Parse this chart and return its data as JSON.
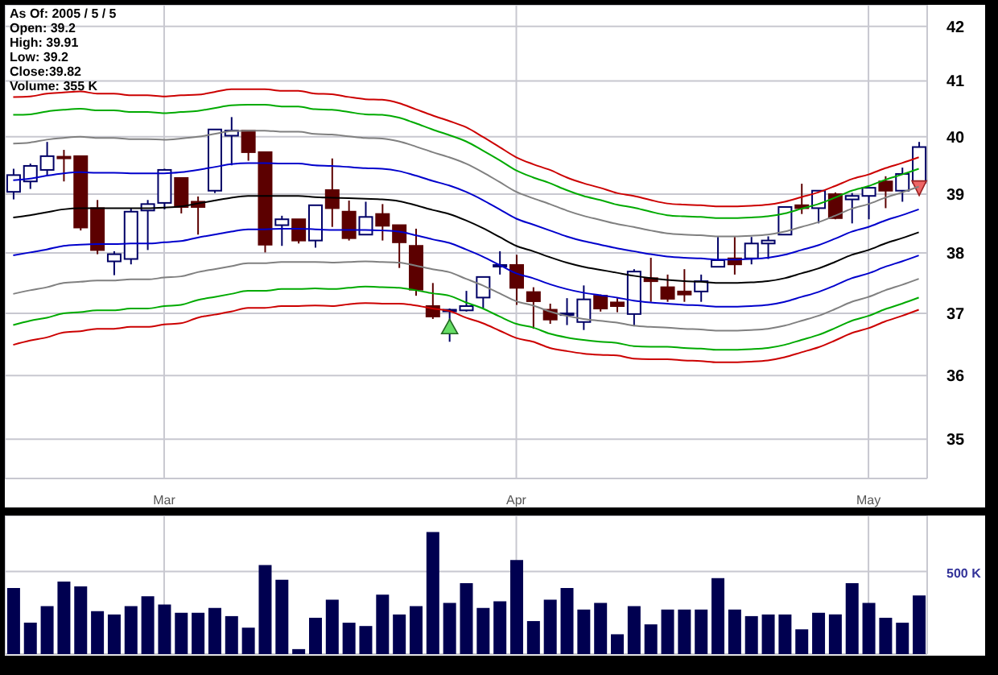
{
  "chart_data": [
    {
      "type": "candlestick",
      "categories": [
        null,
        null,
        null,
        null,
        null,
        null,
        null,
        null,
        null,
        "Mar",
        null,
        null,
        null,
        null,
        null,
        null,
        null,
        null,
        null,
        null,
        null,
        null,
        null,
        null,
        null,
        null,
        null,
        null,
        null,
        null,
        "Apr",
        null,
        null,
        null,
        null,
        null,
        null,
        null,
        null,
        null,
        null,
        null,
        null,
        null,
        null,
        null,
        null,
        null,
        null,
        null,
        null,
        "May",
        null,
        null,
        null
      ],
      "ohlc": [
        [
          39.04,
          39.44,
          38.91,
          39.33
        ],
        [
          39.22,
          39.53,
          39.09,
          39.49
        ],
        [
          39.42,
          39.91,
          39.31,
          39.66
        ],
        [
          39.65,
          39.77,
          39.22,
          39.64
        ],
        [
          39.66,
          39.66,
          38.38,
          38.43
        ],
        [
          38.76,
          38.9,
          37.98,
          38.05
        ],
        [
          37.86,
          38.03,
          37.63,
          37.98
        ],
        [
          37.9,
          38.76,
          37.81,
          38.7
        ],
        [
          38.72,
          38.9,
          38.05,
          38.83
        ],
        [
          38.85,
          39.44,
          38.74,
          39.42
        ],
        [
          39.28,
          39.28,
          38.67,
          38.78
        ],
        [
          38.87,
          38.96,
          38.31,
          38.78
        ],
        [
          39.06,
          40.13,
          39.02,
          40.13
        ],
        [
          40.02,
          40.35,
          39.5,
          40.11
        ],
        [
          40.11,
          40.11,
          39.58,
          39.73
        ],
        [
          39.73,
          39.73,
          38.01,
          38.14
        ],
        [
          38.47,
          38.63,
          38.12,
          38.57
        ],
        [
          38.57,
          38.57,
          38.16,
          38.21
        ],
        [
          38.21,
          38.81,
          38.09,
          38.81
        ],
        [
          39.07,
          39.62,
          38.44,
          38.76
        ],
        [
          38.7,
          38.89,
          38.21,
          38.25
        ],
        [
          38.31,
          38.87,
          38.31,
          38.61
        ],
        [
          38.66,
          38.83,
          38.21,
          38.46
        ],
        [
          38.47,
          38.47,
          37.75,
          38.18
        ],
        [
          38.12,
          38.41,
          37.29,
          37.39
        ],
        [
          37.12,
          37.5,
          36.91,
          36.95
        ],
        [
          37.05,
          37.08,
          36.54,
          37.06
        ],
        [
          37.05,
          37.37,
          37.03,
          37.12
        ],
        [
          37.26,
          37.6,
          37.08,
          37.6
        ],
        [
          37.79,
          38.03,
          37.64,
          37.8
        ],
        [
          37.8,
          37.97,
          37.14,
          37.42
        ],
        [
          37.35,
          37.43,
          36.75,
          37.2
        ],
        [
          37.06,
          37.16,
          36.83,
          36.9
        ],
        [
          36.98,
          37.25,
          36.81,
          37.0
        ],
        [
          36.86,
          37.46,
          36.73,
          37.23
        ],
        [
          37.29,
          37.31,
          37.03,
          37.08
        ],
        [
          37.18,
          37.25,
          37.02,
          37.12
        ],
        [
          36.99,
          37.73,
          36.79,
          37.69
        ],
        [
          37.58,
          37.92,
          37.19,
          37.53
        ],
        [
          37.43,
          37.64,
          37.19,
          37.24
        ],
        [
          37.36,
          37.73,
          37.19,
          37.31
        ],
        [
          37.36,
          37.64,
          37.19,
          37.53
        ],
        [
          37.77,
          38.27,
          37.77,
          37.88
        ],
        [
          37.91,
          38.27,
          37.64,
          37.81
        ],
        [
          37.91,
          38.27,
          37.81,
          38.16
        ],
        [
          38.16,
          38.28,
          37.9,
          38.21
        ],
        [
          38.31,
          38.78,
          38.31,
          38.78
        ],
        [
          38.81,
          39.18,
          38.66,
          38.76
        ],
        [
          38.76,
          39.06,
          38.5,
          39.06
        ],
        [
          39.0,
          39.03,
          38.57,
          38.59
        ],
        [
          38.91,
          39.02,
          38.5,
          38.97
        ],
        [
          38.97,
          39.11,
          38.57,
          39.11
        ],
        [
          39.22,
          39.31,
          38.76,
          39.06
        ],
        [
          39.06,
          39.46,
          38.87,
          39.35
        ],
        [
          39.2,
          39.91,
          39.2,
          39.82
        ]
      ],
      "series": [
        {
          "type": "line",
          "color": "#cc0000",
          "values": [
            40.71,
            40.72,
            40.77,
            40.79,
            40.81,
            40.77,
            40.77,
            40.74,
            40.74,
            40.72,
            40.74,
            40.75,
            40.8,
            40.85,
            40.85,
            40.85,
            40.82,
            40.82,
            40.77,
            40.76,
            40.71,
            40.67,
            40.66,
            40.6,
            40.49,
            40.38,
            40.28,
            40.17,
            40.0,
            39.82,
            39.64,
            39.52,
            39.42,
            39.29,
            39.19,
            39.11,
            39.02,
            38.97,
            38.9,
            38.84,
            38.82,
            38.81,
            38.79,
            38.79,
            38.8,
            38.82,
            38.87,
            38.95,
            39.03,
            39.14,
            39.26,
            39.34,
            39.45,
            39.54,
            39.64
          ]
        },
        {
          "type": "line",
          "color": "#00aa00",
          "values": [
            40.39,
            40.4,
            40.45,
            40.48,
            40.5,
            40.47,
            40.47,
            40.44,
            40.44,
            40.42,
            40.44,
            40.46,
            40.51,
            40.56,
            40.57,
            40.57,
            40.54,
            40.54,
            40.49,
            40.48,
            40.44,
            40.4,
            40.39,
            40.34,
            40.24,
            40.13,
            40.03,
            39.92,
            39.76,
            39.59,
            39.41,
            39.29,
            39.19,
            39.07,
            38.97,
            38.9,
            38.82,
            38.77,
            38.7,
            38.64,
            38.62,
            38.61,
            38.59,
            38.59,
            38.6,
            38.62,
            38.67,
            38.75,
            38.83,
            38.94,
            39.06,
            39.14,
            39.25,
            39.34,
            39.44
          ]
        },
        {
          "type": "line",
          "color": "#808080",
          "values": [
            39.88,
            39.9,
            39.95,
            39.98,
            40.0,
            39.98,
            39.98,
            39.96,
            39.96,
            39.95,
            39.97,
            40.0,
            40.05,
            40.1,
            40.11,
            40.11,
            40.09,
            40.09,
            40.05,
            40.04,
            40.01,
            39.98,
            39.97,
            39.92,
            39.83,
            39.73,
            39.64,
            39.53,
            39.38,
            39.21,
            39.04,
            38.93,
            38.83,
            38.72,
            38.63,
            38.56,
            38.49,
            38.44,
            38.38,
            38.33,
            38.31,
            38.3,
            38.28,
            38.28,
            38.29,
            38.31,
            38.36,
            38.44,
            38.52,
            38.63,
            38.75,
            38.83,
            38.94,
            39.03,
            39.13
          ]
        },
        {
          "type": "line",
          "color": "#0000cc",
          "values": [
            39.24,
            39.27,
            39.32,
            39.36,
            39.38,
            39.37,
            39.37,
            39.36,
            39.36,
            39.36,
            39.38,
            39.42,
            39.47,
            39.52,
            39.54,
            39.54,
            39.53,
            39.53,
            39.5,
            39.49,
            39.47,
            39.45,
            39.44,
            39.4,
            39.32,
            39.23,
            39.15,
            39.04,
            38.9,
            38.74,
            38.58,
            38.48,
            38.38,
            38.28,
            38.2,
            38.14,
            38.08,
            38.03,
            37.98,
            37.94,
            37.92,
            37.91,
            37.89,
            37.89,
            37.9,
            37.92,
            37.97,
            38.05,
            38.13,
            38.24,
            38.36,
            38.44,
            38.55,
            38.64,
            38.74
          ]
        },
        {
          "type": "line",
          "color": "#000000",
          "values": [
            38.6,
            38.64,
            38.69,
            38.74,
            38.76,
            38.76,
            38.76,
            38.76,
            38.76,
            38.77,
            38.79,
            38.84,
            38.89,
            38.94,
            38.97,
            38.97,
            38.97,
            38.97,
            38.95,
            38.94,
            38.93,
            38.92,
            38.91,
            38.88,
            38.81,
            38.73,
            38.66,
            38.55,
            38.42,
            38.27,
            38.12,
            38.03,
            37.93,
            37.84,
            37.77,
            37.72,
            37.67,
            37.62,
            37.58,
            37.55,
            37.53,
            37.52,
            37.5,
            37.5,
            37.51,
            37.53,
            37.58,
            37.66,
            37.74,
            37.85,
            37.97,
            38.05,
            38.16,
            38.25,
            38.35
          ]
        },
        {
          "type": "line",
          "color": "#0000cc",
          "values": [
            37.96,
            38.01,
            38.06,
            38.12,
            38.14,
            38.15,
            38.15,
            38.16,
            38.16,
            38.18,
            38.2,
            38.26,
            38.31,
            38.36,
            38.4,
            38.4,
            38.41,
            38.41,
            38.4,
            38.39,
            38.39,
            38.39,
            38.38,
            38.36,
            38.3,
            38.23,
            38.17,
            38.06,
            37.94,
            37.8,
            37.66,
            37.58,
            37.48,
            37.4,
            37.34,
            37.3,
            37.26,
            37.21,
            37.18,
            37.16,
            37.14,
            37.13,
            37.11,
            37.11,
            37.12,
            37.14,
            37.19,
            37.27,
            37.35,
            37.46,
            37.58,
            37.66,
            37.77,
            37.86,
            37.96
          ]
        },
        {
          "type": "line",
          "color": "#808080",
          "values": [
            37.32,
            37.38,
            37.43,
            37.5,
            37.52,
            37.54,
            37.54,
            37.56,
            37.56,
            37.59,
            37.61,
            37.68,
            37.73,
            37.78,
            37.83,
            37.83,
            37.85,
            37.85,
            37.85,
            37.84,
            37.85,
            37.86,
            37.85,
            37.84,
            37.79,
            37.73,
            37.68,
            37.57,
            37.46,
            37.33,
            37.2,
            37.13,
            37.03,
            36.96,
            36.91,
            36.88,
            36.85,
            36.8,
            36.78,
            36.77,
            36.75,
            36.74,
            36.72,
            36.72,
            36.73,
            36.75,
            36.8,
            36.88,
            36.96,
            37.07,
            37.19,
            37.27,
            37.38,
            37.47,
            37.57
          ]
        },
        {
          "type": "line",
          "color": "#00aa00",
          "values": [
            36.81,
            36.88,
            36.93,
            37.0,
            37.02,
            37.05,
            37.05,
            37.08,
            37.08,
            37.12,
            37.14,
            37.22,
            37.27,
            37.32,
            37.37,
            37.37,
            37.4,
            37.4,
            37.41,
            37.4,
            37.42,
            37.44,
            37.43,
            37.42,
            37.38,
            37.33,
            37.29,
            37.18,
            37.08,
            36.95,
            36.83,
            36.77,
            36.67,
            36.61,
            36.57,
            36.54,
            36.52,
            36.47,
            36.46,
            36.46,
            36.44,
            36.43,
            36.41,
            36.41,
            36.42,
            36.44,
            36.49,
            36.57,
            36.65,
            36.76,
            36.88,
            36.96,
            37.07,
            37.16,
            37.26
          ]
        },
        {
          "type": "line",
          "color": "#cc0000",
          "values": [
            36.49,
            36.56,
            36.61,
            36.69,
            36.71,
            36.75,
            36.75,
            36.78,
            36.78,
            36.82,
            36.84,
            36.93,
            36.98,
            37.03,
            37.09,
            37.09,
            37.12,
            37.12,
            37.13,
            37.12,
            37.15,
            37.17,
            37.16,
            37.16,
            37.13,
            37.08,
            37.04,
            36.93,
            36.84,
            36.72,
            36.6,
            36.54,
            36.44,
            36.39,
            36.35,
            36.33,
            36.32,
            36.27,
            36.26,
            36.26,
            36.24,
            36.23,
            36.21,
            36.21,
            36.22,
            36.24,
            36.29,
            36.37,
            36.45,
            36.56,
            36.68,
            36.76,
            36.87,
            36.96,
            37.06
          ]
        }
      ],
      "ylim": [
        34.4,
        42.4
      ],
      "yticks": [
        35,
        36,
        37,
        38,
        39,
        40,
        41,
        42
      ],
      "log": true,
      "grid": true,
      "annotations": [
        "As Of: 2005 / 5 / 5",
        "Open: 39.2",
        "High: 39.91",
        "Low: 39.2",
        "Close:39.82",
        "Volume: 355 K"
      ]
    },
    {
      "type": "bar",
      "categories": [
        null,
        null,
        null,
        null,
        null,
        null,
        null,
        null,
        null,
        null,
        null,
        null,
        null,
        null,
        null,
        null,
        null,
        null,
        null,
        null,
        null,
        null,
        null,
        null,
        null,
        null,
        null,
        null,
        null,
        null,
        null,
        null,
        null,
        null,
        null,
        null,
        null,
        null,
        null,
        null,
        null,
        null,
        null,
        null,
        null,
        null,
        null,
        null,
        null,
        null,
        null,
        null,
        null,
        null,
        null
      ],
      "values": [
        400,
        190,
        290,
        440,
        410,
        260,
        240,
        290,
        350,
        300,
        250,
        250,
        280,
        230,
        160,
        540,
        450,
        30,
        220,
        330,
        190,
        170,
        360,
        240,
        290,
        740,
        310,
        430,
        280,
        320,
        570,
        200,
        330,
        400,
        270,
        310,
        120,
        290,
        180,
        270,
        270,
        270,
        460,
        270,
        230,
        240,
        240,
        150,
        250,
        240,
        430,
        310,
        220,
        190,
        355
      ],
      "color": "#000050",
      "ylim": [
        0,
        840
      ],
      "yticks": [
        {
          "value": 0,
          "label": null
        },
        {
          "value": 500,
          "label": "500 K"
        }
      ],
      "grid": true,
      "tick_labels": "y"
    }
  ]
}
